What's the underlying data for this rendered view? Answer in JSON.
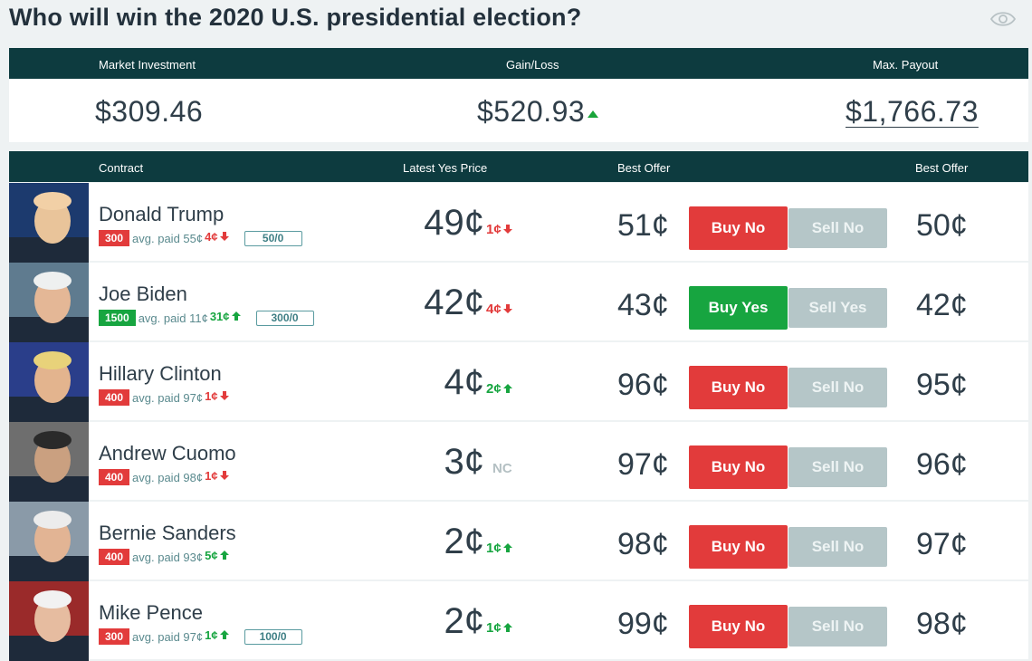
{
  "title": "Who will win the 2020 U.S. presidential election?",
  "icons": {
    "watch": "eye-icon"
  },
  "summary": {
    "headers": [
      "Market Investment",
      "Gain/Loss",
      "Max. Payout"
    ],
    "investment": "$309.46",
    "gain_loss": "$520.93",
    "gain_direction": "up",
    "max_payout": "$1,766.73"
  },
  "table": {
    "headers": {
      "contract": "Contract",
      "latest": "Latest Yes Price",
      "offer1": "Best Offer",
      "offer2": "Best Offer"
    }
  },
  "colors": {
    "header": "#0d3b3f",
    "red": "#e23b3b",
    "green": "#17a540",
    "sell": "#b5c6c8"
  },
  "rows": [
    {
      "name": "Donald Trump",
      "shares": "300",
      "side": "no",
      "avg": "avg. paid 55¢",
      "avg_chg": "4¢",
      "avg_dir": "down",
      "orders": "50/0",
      "price": "49¢",
      "price_chg": "1¢",
      "price_dir": "down",
      "offer": "51¢",
      "buy": "Buy No",
      "sell": "Sell No",
      "offer2": "50¢"
    },
    {
      "name": "Joe Biden",
      "shares": "1500",
      "side": "yes",
      "avg": "avg. paid 11¢",
      "avg_chg": "31¢",
      "avg_dir": "up",
      "orders": "300/0",
      "price": "42¢",
      "price_chg": "4¢",
      "price_dir": "down",
      "offer": "43¢",
      "buy": "Buy Yes",
      "sell": "Sell Yes",
      "offer2": "42¢"
    },
    {
      "name": "Hillary Clinton",
      "shares": "400",
      "side": "no",
      "avg": "avg. paid 97¢",
      "avg_chg": "1¢",
      "avg_dir": "down",
      "orders": "",
      "price": "4¢",
      "price_chg": "2¢",
      "price_dir": "up",
      "offer": "96¢",
      "buy": "Buy No",
      "sell": "Sell No",
      "offer2": "95¢"
    },
    {
      "name": "Andrew Cuomo",
      "shares": "400",
      "side": "no",
      "avg": "avg. paid 98¢",
      "avg_chg": "1¢",
      "avg_dir": "down",
      "orders": "",
      "price": "3¢",
      "price_chg": "NC",
      "price_dir": "none",
      "offer": "97¢",
      "buy": "Buy No",
      "sell": "Sell No",
      "offer2": "96¢"
    },
    {
      "name": "Bernie Sanders",
      "shares": "400",
      "side": "no",
      "avg": "avg. paid 93¢",
      "avg_chg": "5¢",
      "avg_dir": "up",
      "orders": "",
      "price": "2¢",
      "price_chg": "1¢",
      "price_dir": "up",
      "offer": "98¢",
      "buy": "Buy No",
      "sell": "Sell No",
      "offer2": "97¢"
    },
    {
      "name": "Mike Pence",
      "shares": "300",
      "side": "no",
      "avg": "avg. paid 97¢",
      "avg_chg": "1¢",
      "avg_dir": "up",
      "orders": "100/0",
      "price": "2¢",
      "price_chg": "1¢",
      "price_dir": "up",
      "offer": "99¢",
      "buy": "Buy No",
      "sell": "Sell No",
      "offer2": "98¢"
    }
  ]
}
